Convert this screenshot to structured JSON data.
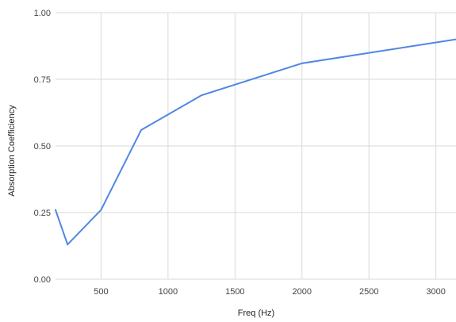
{
  "chart_data": {
    "type": "line",
    "xlabel": "Freq (Hz)",
    "ylabel": "Absorption Coefficiency",
    "xlim": [
      160,
      3150
    ],
    "ylim": [
      0,
      1
    ],
    "x_ticks": [
      500,
      1000,
      1500,
      2000,
      2500,
      3000
    ],
    "y_ticks": [
      0,
      0.25,
      0.5,
      0.75,
      1
    ],
    "x_tick_labels": [
      "500",
      "1000",
      "1500",
      "2000",
      "2500",
      "3000"
    ],
    "y_tick_labels": [
      "0.00",
      "0.25",
      "0.50",
      "0.75",
      "1.00"
    ],
    "grid": true,
    "legend": "none",
    "series": [
      {
        "color": "#5087e4",
        "x": [
          160,
          250,
          500,
          800,
          1250,
          2000,
          3150
        ],
        "y": [
          0.26,
          0.13,
          0.26,
          0.56,
          0.69,
          0.81,
          0.9
        ]
      }
    ]
  }
}
